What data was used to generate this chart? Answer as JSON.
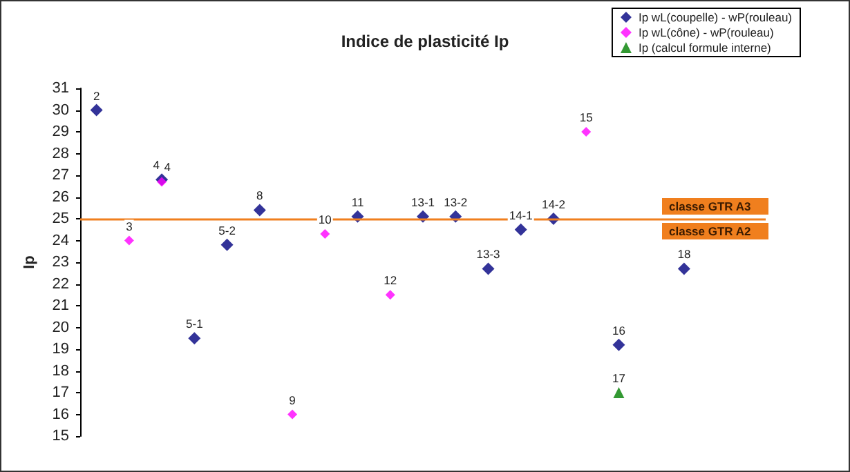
{
  "chart_data": {
    "type": "scatter",
    "title": "Indice de plasticité Ip",
    "ylabel": "Ip",
    "categories": [
      null,
      null,
      null,
      null,
      null,
      null,
      null,
      null,
      null,
      null,
      null,
      null,
      null,
      null,
      null,
      null,
      null,
      null,
      null,
      null,
      null
    ],
    "series": [
      {
        "name": "Ip wL(coupelle) - wP(rouleau)",
        "color": "#000080",
        "marker": "diamond",
        "values": [
          30,
          null,
          26.8,
          19.5,
          23.8,
          25.4,
          null,
          null,
          25.1,
          null,
          25.1,
          25.1,
          22.7,
          24.5,
          25.0,
          null,
          19.2,
          null,
          22.7,
          null,
          null
        ]
      },
      {
        "name": "Ip wL(cône) - wP(rouleau)",
        "color": "#ff00ff",
        "marker": "diamond",
        "values": [
          null,
          24.0,
          26.7,
          null,
          null,
          null,
          16.0,
          24.3,
          null,
          21.5,
          null,
          null,
          null,
          null,
          null,
          29.0,
          null,
          null,
          null,
          null,
          null
        ]
      },
      {
        "name": "Ip (calcul formule interne)",
        "color": "#008000",
        "marker": "triangle",
        "values": [
          null,
          null,
          null,
          null,
          null,
          null,
          null,
          null,
          null,
          null,
          null,
          null,
          null,
          null,
          null,
          null,
          17.0,
          null,
          null,
          null,
          null
        ]
      }
    ],
    "ylim": [
      15,
      31
    ],
    "yticks": [
      15,
      16,
      17,
      18,
      19,
      20,
      21,
      22,
      23,
      24,
      25,
      26,
      27,
      28,
      29,
      30,
      31
    ],
    "grid": false,
    "legend": "top right",
    "ref_lines": [
      {
        "axis": "y",
        "value": 25,
        "color": "#f07f1e"
      }
    ],
    "annotations": [
      "classe GTR A3",
      "classe GTR A2",
      {
        "text": "2",
        "y": 30
      },
      {
        "text": "3",
        "y": 24.0
      },
      {
        "text": "4",
        "y": 26.8
      },
      {
        "text": "4",
        "y": 26.7
      },
      {
        "text": "5-1",
        "y": 19.5
      },
      {
        "text": "5-2",
        "y": 23.8
      },
      {
        "text": "8",
        "y": 25.4
      },
      {
        "text": "9",
        "y": 16.0
      },
      {
        "text": "10",
        "y": 24.3
      },
      {
        "text": "11",
        "y": 25.1
      },
      {
        "text": "12",
        "y": 21.5
      },
      {
        "text": "13-1",
        "y": 25.1
      },
      {
        "text": "13-2",
        "y": 25.1
      },
      {
        "text": "13-3",
        "y": 22.7
      },
      {
        "text": "14-1",
        "y": 24.5
      },
      {
        "text": "14-2",
        "y": 25.0
      },
      {
        "text": "15",
        "y": 29.0
      },
      {
        "text": "16",
        "y": 19.2
      },
      {
        "text": "17",
        "y": 17.0
      },
      {
        "text": "18",
        "y": 22.7
      }
    ]
  }
}
